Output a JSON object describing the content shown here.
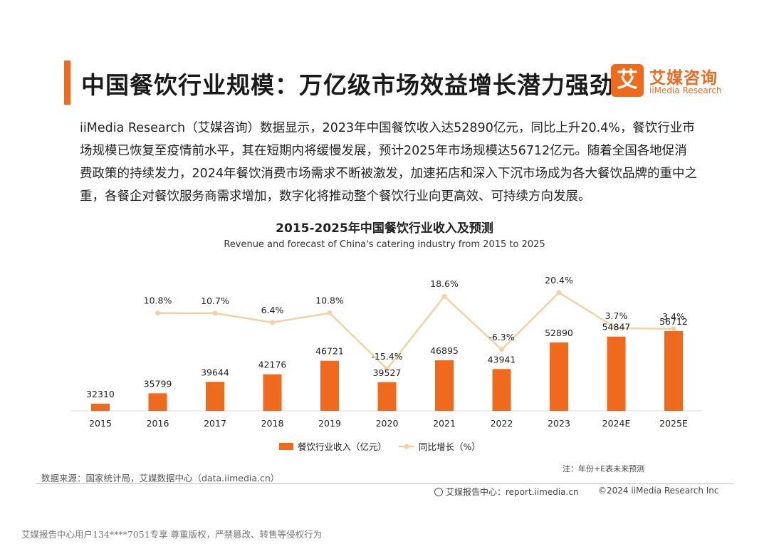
{
  "header": {
    "title": "中国餐饮行业规模：万亿级市场效益增长潜力强劲",
    "logo_mark": "艾",
    "logo_cn": "艾媒咨询",
    "logo_en": "iiMedia Research",
    "accent_color": "#f06a1e"
  },
  "description": "iiMedia Research（艾媒咨询）数据显示，2023年中国餐饮收入达52890亿元，同比上升20.4%，餐饮行业市场规模已恢复至疫情前水平，其在短期内将缓慢发展，预计2025年市场规模达56712亿元。随着全国各地促消费政策的持续发力，2024年餐饮消费市场需求不断被激发，加速拓店和深入下沉市场成为各大餐饮品牌的重中之重，各餐企对餐饮服务商需求增加，数字化将推动整个餐饮行业向更高效、可持续方向发展。",
  "chart_data": {
    "type": "bar",
    "title": "2015-2025年中国餐饮行业收入及预测",
    "subtitle": "Revenue and forecast of China's catering industry from 2015 to 2025",
    "categories": [
      "2015",
      "2016",
      "2017",
      "2018",
      "2019",
      "2020",
      "2021",
      "2022",
      "2023",
      "2024E",
      "2025E"
    ],
    "series": [
      {
        "name": "餐饮行业收入（亿元）",
        "type": "bar",
        "color": "#f06a1e",
        "values": [
          32310,
          35799,
          39644,
          42176,
          46721,
          39527,
          46895,
          43941,
          52890,
          54847,
          56712
        ],
        "labels": [
          "32310",
          "35799",
          "39644",
          "42176",
          "46721",
          "39527",
          "46895",
          "43941",
          "52890",
          "54847",
          "56712"
        ]
      },
      {
        "name": "同比增长（%）",
        "type": "line",
        "color": "#f2d2a4",
        "values": [
          null,
          10.8,
          10.7,
          6.4,
          10.8,
          -15.4,
          18.6,
          -6.3,
          20.4,
          3.7,
          3.4
        ],
        "labels": [
          "",
          "10.8%",
          "10.7%",
          "6.4%",
          "10.8%",
          "-15.4%",
          "18.6%",
          "-6.3%",
          "20.4%",
          "3.7%",
          "3.4%"
        ]
      }
    ],
    "legend_position": "bottom",
    "grid": false
  },
  "footer": {
    "source": "数据来源：国家统计局，艾媒数据中心（data.iimedia.cn）",
    "note": "注：年份+E表未来预测",
    "report_center": "艾媒报告中心：report.iimedia.cn",
    "copyright": "©2024  iiMedia Research  Inc",
    "watermark": "艾媒报告中心用户134****7051专享 尊重版权，严禁篡改、转售等侵权行为"
  }
}
